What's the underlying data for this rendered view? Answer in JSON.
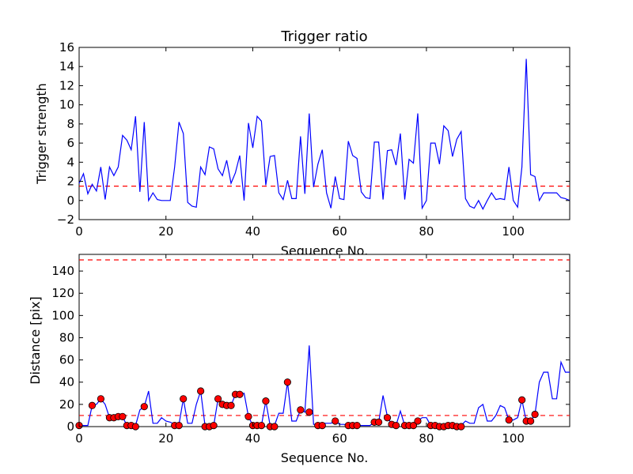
{
  "chart_data": [
    {
      "type": "line",
      "title": "Trigger ratio",
      "xlabel": "Sequence No.",
      "ylabel": "Trigger strength",
      "xlim": [
        0,
        113
      ],
      "ylim": [
        -2,
        16
      ],
      "xticks": [
        0,
        20,
        40,
        60,
        80,
        100
      ],
      "yticks": [
        -2,
        0,
        2,
        4,
        6,
        8,
        10,
        12,
        14,
        16
      ],
      "grid": false,
      "colors": {
        "line": "#0000ff",
        "reference": "#ff0000"
      },
      "series": [
        {
          "x": [
            0,
            1,
            2,
            3,
            4,
            5,
            6,
            7,
            8,
            9,
            10,
            11,
            12,
            13,
            14,
            15,
            16,
            17,
            18,
            19,
            20,
            21,
            22,
            23,
            24,
            25,
            26,
            27,
            28,
            29,
            30,
            31,
            32,
            33,
            34,
            35,
            36,
            37,
            38,
            39,
            40,
            41,
            42,
            43,
            44,
            45,
            46,
            47,
            48,
            49,
            50,
            51,
            52,
            53,
            54,
            55,
            56,
            57,
            58,
            59,
            60,
            61,
            62,
            63,
            64,
            65,
            66,
            67,
            68,
            69,
            70,
            71,
            72,
            73,
            74,
            75,
            76,
            77,
            78,
            79,
            80,
            81,
            82,
            83,
            84,
            85,
            86,
            87,
            88,
            89,
            90,
            91,
            92,
            93,
            94,
            95,
            96,
            97,
            98,
            99,
            100,
            101,
            102,
            103,
            104,
            105,
            106,
            107,
            108,
            109,
            110,
            111,
            112,
            113
          ],
          "values": [
            1.8,
            2.8,
            0.7,
            1.7,
            1.0,
            3.5,
            0.1,
            3.5,
            2.6,
            3.5,
            6.8,
            6.3,
            5.3,
            8.8,
            0.9,
            8.2,
            0.0,
            0.8,
            0.1,
            0.0,
            0.0,
            0.0,
            3.5,
            8.2,
            7.0,
            -0.2,
            -0.6,
            -0.7,
            3.5,
            2.7,
            5.6,
            5.4,
            3.3,
            2.6,
            4.2,
            1.8,
            2.9,
            4.7,
            0.0,
            8.1,
            5.5,
            8.8,
            8.3,
            1.6,
            4.6,
            4.7,
            0.8,
            0.1,
            2.1,
            0.2,
            0.2,
            6.7,
            0.7,
            9.1,
            1.4,
            3.8,
            5.3,
            0.8,
            -0.8,
            2.5,
            0.2,
            0.1,
            6.2,
            4.7,
            4.4,
            0.9,
            0.3,
            0.2,
            6.1,
            6.1,
            0.1,
            5.2,
            5.3,
            3.7,
            7.0,
            0.1,
            4.3,
            3.9,
            9.1,
            -0.8,
            0.0,
            6.0,
            6.0,
            3.8,
            7.8,
            7.3,
            4.6,
            6.4,
            7.2,
            0.2,
            -0.6,
            -0.8,
            0.0,
            -0.9,
            0.0,
            0.8,
            0.1,
            0.2,
            0.1,
            3.5,
            0.0,
            -0.7,
            3.5,
            14.8,
            2.7,
            2.5,
            0.0,
            0.8,
            0.8,
            0.8,
            0.8,
            0.3,
            0.2,
            0.0
          ]
        }
      ],
      "reference_line": 1.5
    },
    {
      "type": "line",
      "title": "",
      "xlabel": "Sequence No.",
      "ylabel": "Distance [pix]",
      "xlim": [
        0,
        113
      ],
      "ylim": [
        0,
        155
      ],
      "xticks": [
        0,
        20,
        40,
        60,
        80,
        100
      ],
      "yticks": [
        0,
        20,
        40,
        60,
        80,
        100,
        120,
        140
      ],
      "grid": false,
      "colors": {
        "line": "#0000ff",
        "reference": "#ff0000",
        "marker": "#ff0000"
      },
      "series": [
        {
          "x": [
            0,
            1,
            2,
            3,
            4,
            5,
            6,
            7,
            8,
            9,
            10,
            11,
            12,
            13,
            14,
            15,
            16,
            17,
            18,
            19,
            20,
            21,
            22,
            23,
            24,
            25,
            26,
            27,
            28,
            29,
            30,
            31,
            32,
            33,
            34,
            35,
            36,
            37,
            38,
            39,
            40,
            41,
            42,
            43,
            44,
            45,
            46,
            47,
            48,
            49,
            50,
            51,
            52,
            53,
            54,
            55,
            56,
            57,
            58,
            59,
            60,
            61,
            62,
            63,
            64,
            65,
            66,
            67,
            68,
            69,
            70,
            71,
            72,
            73,
            74,
            75,
            76,
            77,
            78,
            79,
            80,
            81,
            82,
            83,
            84,
            85,
            86,
            87,
            88,
            89,
            90,
            91,
            92,
            93,
            94,
            95,
            96,
            97,
            98,
            99,
            100,
            101,
            102,
            103,
            104,
            105,
            106,
            107,
            108,
            109,
            110,
            111,
            112,
            113
          ],
          "values": [
            1,
            1,
            1,
            19,
            20,
            25,
            20,
            8,
            8,
            9,
            9,
            1,
            1,
            1,
            15,
            18,
            32,
            3,
            3,
            8,
            5,
            4,
            2,
            2,
            25,
            3,
            3,
            20,
            32,
            1,
            1,
            1,
            25,
            20,
            19,
            19,
            29,
            29,
            30,
            9,
            1,
            1,
            1,
            23,
            1,
            1,
            12,
            12,
            40,
            5,
            5,
            15,
            13,
            73,
            2,
            2,
            3,
            3,
            3,
            5,
            2,
            2,
            1,
            1,
            1,
            1,
            1,
            1,
            4,
            4,
            28,
            9,
            2,
            1,
            14,
            1,
            1,
            2,
            5,
            8,
            8,
            1,
            1,
            1,
            1,
            1,
            1,
            1,
            1,
            5,
            3,
            3,
            17,
            20,
            5,
            5,
            10,
            19,
            17,
            6,
            6,
            8,
            24,
            5,
            5,
            11,
            40,
            49,
            49,
            25,
            25,
            58,
            49,
            49
          ]
        },
        {
          "name": "",
          "x": [
            0,
            3,
            5,
            7,
            8,
            9,
            10,
            11,
            12,
            13,
            15,
            22,
            23,
            24,
            28,
            29,
            30,
            31,
            32,
            33,
            34,
            35,
            36,
            37,
            39,
            40,
            41,
            42,
            43,
            44,
            45,
            48,
            51,
            53,
            55,
            56,
            59,
            62,
            63,
            64,
            68,
            69,
            71,
            72,
            73,
            75,
            76,
            77,
            78,
            81,
            82,
            83,
            84,
            85,
            86,
            87,
            88,
            99,
            102,
            103,
            104,
            105
          ],
          "values": [
            1,
            19,
            25,
            8,
            8,
            9,
            9,
            1,
            1,
            0,
            18,
            1,
            1,
            25,
            32,
            0,
            0,
            1,
            25,
            20,
            19,
            19,
            29,
            29,
            9,
            1,
            1,
            1,
            23,
            0,
            0,
            40,
            15,
            13,
            1,
            1,
            5,
            1,
            1,
            1,
            4,
            4,
            8,
            2,
            1,
            1,
            1,
            1,
            5,
            1,
            1,
            0,
            0,
            1,
            1,
            0,
            0,
            6,
            24,
            5,
            5,
            11
          ],
          "style": "markers"
        }
      ],
      "reference_lines": [
        150,
        10
      ]
    }
  ]
}
